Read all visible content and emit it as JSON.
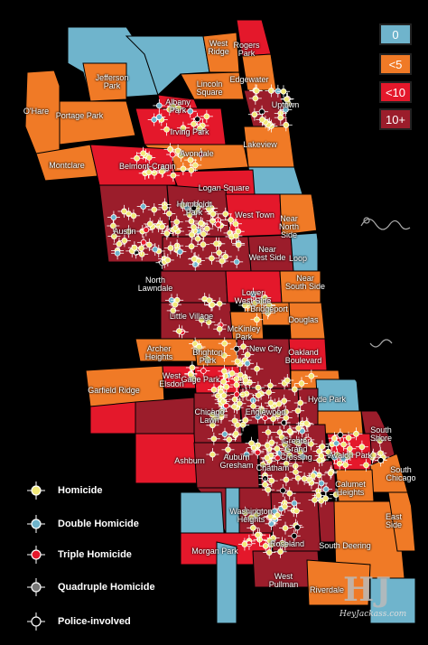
{
  "map": {
    "colors": {
      "zero": "#6fb4cc",
      "lt5": "#f07a26",
      "lt10": "#e4182b",
      "ten_plus": "#9b1d2b",
      "lake": "#000000"
    },
    "neighborhoods": [
      {
        "label": "West\nRidge"
      },
      {
        "label": "Rogers\nPark"
      },
      {
        "label": "Edgewater"
      },
      {
        "label": "Lincoln\nSquare"
      },
      {
        "label": "Jefferson\nPark"
      },
      {
        "label": "Albany\nPark"
      },
      {
        "label": "Uptown"
      },
      {
        "label": "O'Hare"
      },
      {
        "label": "Portage Park"
      },
      {
        "label": "Irving Park"
      },
      {
        "label": "Lakeview"
      },
      {
        "label": "Avondale"
      },
      {
        "label": "Montclare"
      },
      {
        "label": "Belmont-Cragin"
      },
      {
        "label": "Logan Square"
      },
      {
        "label": "Humboldt\nPark"
      },
      {
        "label": "West Town"
      },
      {
        "label": "Near\nNorth\nSide"
      },
      {
        "label": "Austin"
      },
      {
        "label": "Near\nWest Side"
      },
      {
        "label": "Loop"
      },
      {
        "label": "North\nLawndale"
      },
      {
        "label": "Lower\nWest Side"
      },
      {
        "label": "Near\nSouth Side"
      },
      {
        "label": "Little Village"
      },
      {
        "label": "Bridgeport"
      },
      {
        "label": "Douglas"
      },
      {
        "label": "McKinley\nPark"
      },
      {
        "label": "Archer\nHeights"
      },
      {
        "label": "Brighton\nPark"
      },
      {
        "label": "New City"
      },
      {
        "label": "Oakland\nBoulevard"
      },
      {
        "label": "West\nElsdon"
      },
      {
        "label": "Gage Park"
      },
      {
        "label": "Garfield Ridge"
      },
      {
        "label": "Hyde Park"
      },
      {
        "label": "Chicago\nLawn"
      },
      {
        "label": "Englewood"
      },
      {
        "label": "Ashburn"
      },
      {
        "label": "Auburn\nGresham"
      },
      {
        "label": "Greater\nGrand\nCrossing"
      },
      {
        "label": "South\nShore"
      },
      {
        "label": "Chatham"
      },
      {
        "label": "Avalon Park"
      },
      {
        "label": "South\nChicago"
      },
      {
        "label": "Calumet\nHeights"
      },
      {
        "label": "Washington\nHeights"
      },
      {
        "label": "East\nSide"
      },
      {
        "label": "South Deering"
      },
      {
        "label": "Morgan Park"
      },
      {
        "label": "Roseland"
      },
      {
        "label": "West\nPullman"
      },
      {
        "label": "Riverdale"
      }
    ]
  },
  "count_legend": [
    {
      "label": "0",
      "color": "#6fb4cc"
    },
    {
      "label": "<5",
      "color": "#f07a26"
    },
    {
      "label": "<10",
      "color": "#e4182b"
    },
    {
      "label": "10+",
      "color": "#9b1d2b"
    }
  ],
  "symbol_legend": [
    {
      "label": "Homicide",
      "dot": "#f2e97a"
    },
    {
      "label": "Double Homicide",
      "dot": "#6fb4cc"
    },
    {
      "label": "Triple Homicide",
      "dot": "#e4182b"
    },
    {
      "label": "Quadruple Homicide",
      "dot": "#777777"
    },
    {
      "label": "Police-involved",
      "dot": "#000000"
    }
  ],
  "watermark": {
    "logo": "HJ",
    "text": "HeyJackass.com"
  }
}
